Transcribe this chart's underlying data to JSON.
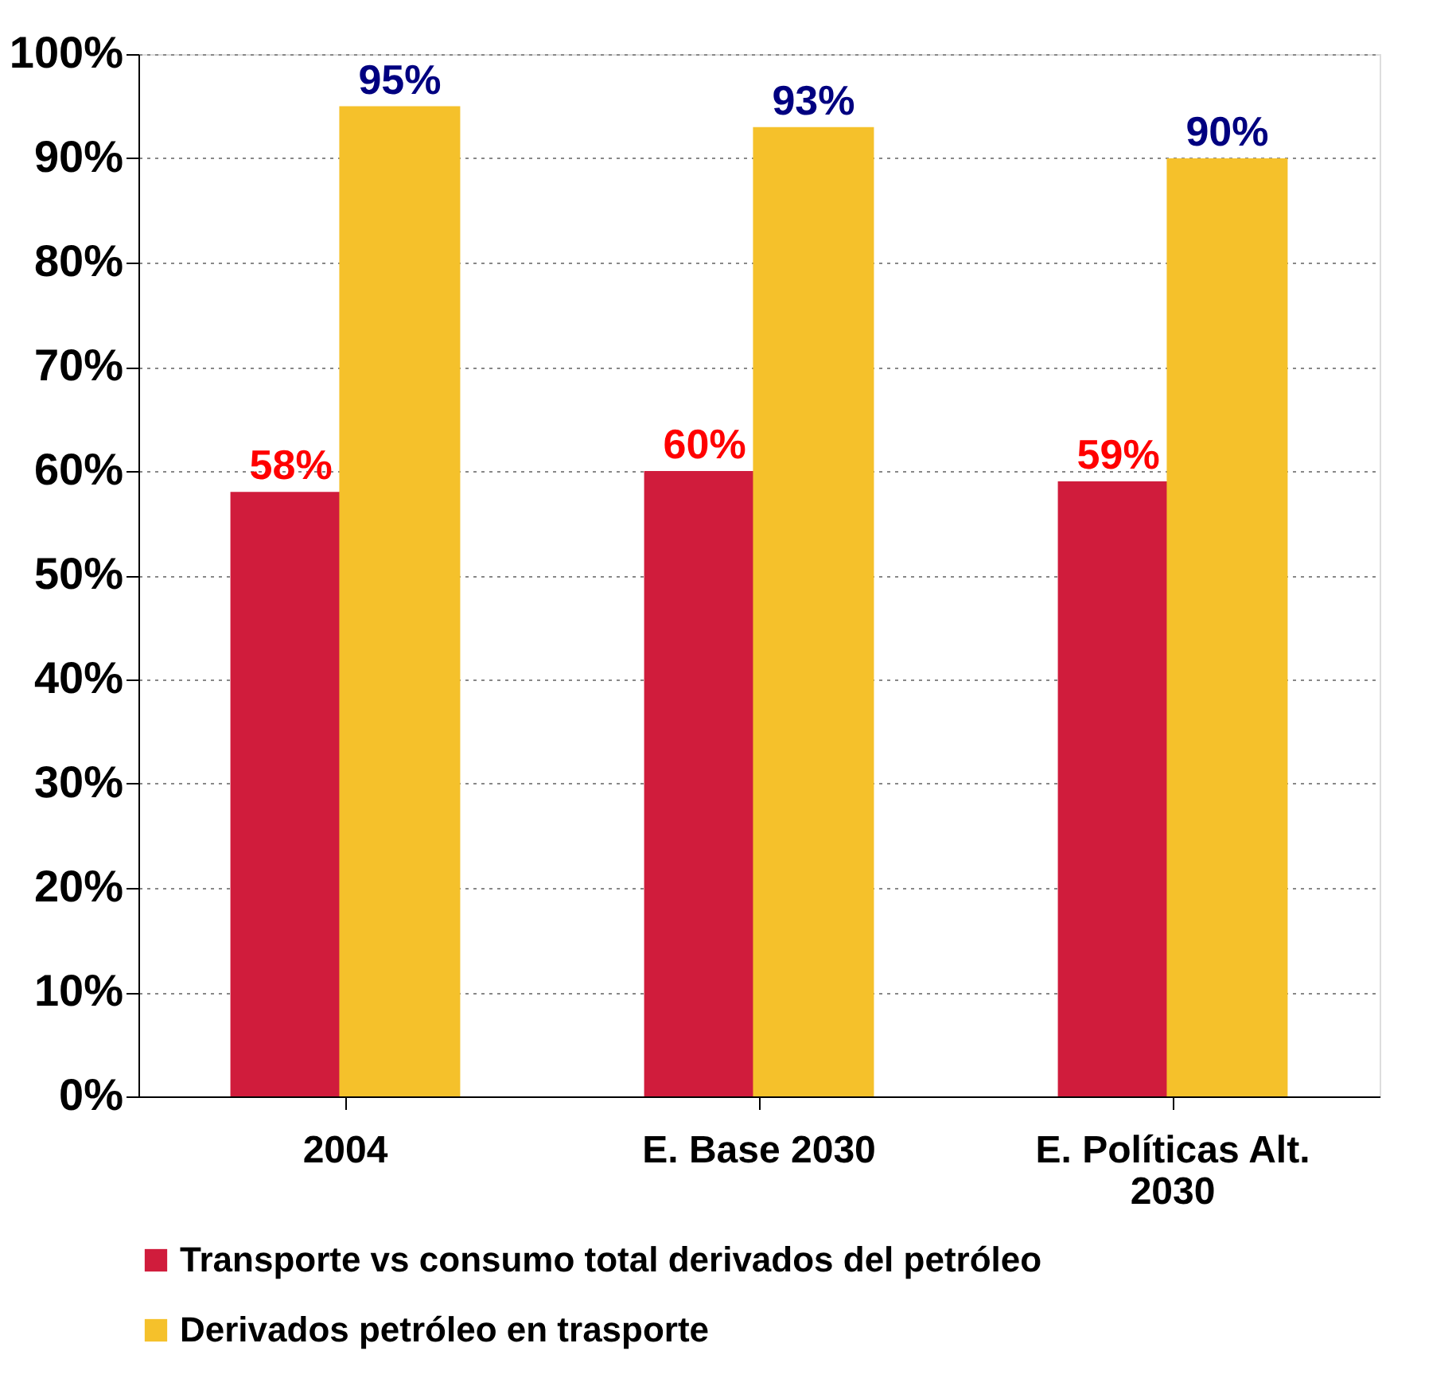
{
  "chart_data": {
    "type": "bar",
    "categories": [
      "2004",
      "E. Base 2030",
      "E. Políticas Alt. 2030"
    ],
    "series": [
      {
        "name": "Transporte vs consumo total derivados del petróleo",
        "color": "#d01c3c",
        "values": [
          58,
          60,
          59
        ],
        "value_labels": [
          "58%",
          "60%",
          "59%"
        ]
      },
      {
        "name": "Derivados petróleo en trasporte",
        "color": "#f5c12b",
        "values": [
          95,
          93,
          90
        ],
        "value_labels": [
          "95%",
          "93%",
          "90%"
        ]
      }
    ],
    "ylim": [
      0,
      100
    ],
    "yticks": [
      {
        "value": 0,
        "label": "0%"
      },
      {
        "value": 10,
        "label": "10%"
      },
      {
        "value": 20,
        "label": "20%"
      },
      {
        "value": 30,
        "label": "30%"
      },
      {
        "value": 40,
        "label": "40%"
      },
      {
        "value": 50,
        "label": "50%"
      },
      {
        "value": 60,
        "label": "60%"
      },
      {
        "value": 70,
        "label": "70%"
      },
      {
        "value": 80,
        "label": "80%"
      },
      {
        "value": 90,
        "label": "90%"
      },
      {
        "value": 100,
        "label": "100%"
      }
    ],
    "grid": "y",
    "legend": "bottom"
  }
}
